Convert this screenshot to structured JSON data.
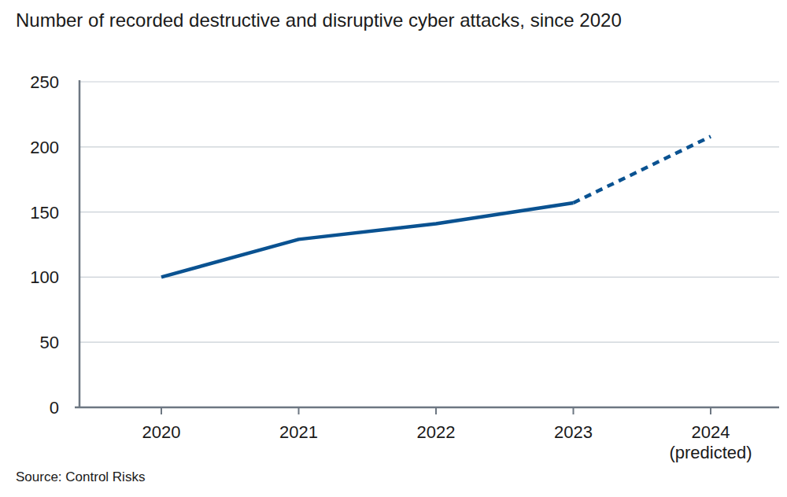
{
  "chart_data": {
    "type": "line",
    "title": "Number of recorded destructive and disruptive cyber attacks, since 2020",
    "source": "Source: Control Risks",
    "categories": [
      "2020",
      "2021",
      "2022",
      "2023",
      "2024 (predicted)"
    ],
    "series": [
      {
        "color": "#0a5291",
        "line_style": "solid",
        "values": [
          100,
          129,
          141,
          157,
          null
        ]
      },
      {
        "color": "#0a5291",
        "line_style": "dashed",
        "values": [
          null,
          null,
          null,
          157,
          208
        ]
      }
    ],
    "ylim": [
      0,
      250
    ],
    "yticks": [
      0,
      50,
      100,
      150,
      200,
      250
    ],
    "grid": true
  }
}
